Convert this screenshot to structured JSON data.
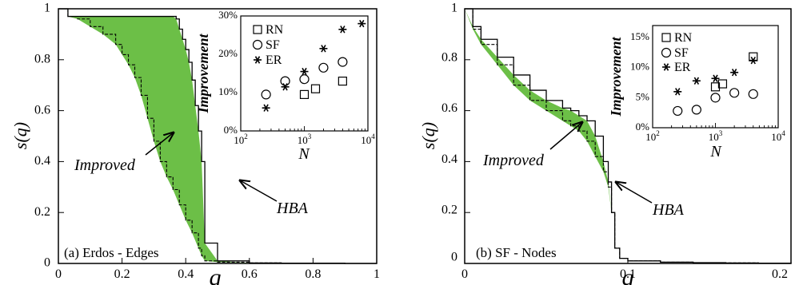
{
  "colors": {
    "fill": "#6cbf47",
    "line": "#000000"
  },
  "chart_data": [
    {
      "type": "area",
      "panel_label": "(a) Erdos - Edges",
      "xlabel": "q",
      "ylabel": "s(q)",
      "xlim": [
        0,
        1
      ],
      "ylim": [
        0,
        1
      ],
      "xticks": [
        "0",
        "0.2",
        "0.4",
        "0.6",
        "0.8",
        "1"
      ],
      "yticks": [
        "0",
        "0.2",
        "0.4",
        "0.6",
        "0.8",
        "1"
      ],
      "annotations": [
        {
          "text": "Improved"
        },
        {
          "text": "HBA"
        }
      ],
      "series": [
        {
          "name": "Improved",
          "x": [
            0,
            0.03,
            0.06,
            0.1,
            0.14,
            0.18,
            0.2,
            0.22,
            0.24,
            0.26,
            0.28,
            0.3,
            0.32,
            0.34,
            0.36,
            0.38,
            0.4,
            0.42,
            0.44,
            0.45,
            0.46,
            0.5,
            0.6,
            0.7,
            0.8,
            0.9,
            1.0
          ],
          "y": [
            1.0,
            0.97,
            0.96,
            0.93,
            0.9,
            0.86,
            0.82,
            0.78,
            0.73,
            0.66,
            0.57,
            0.48,
            0.4,
            0.34,
            0.29,
            0.23,
            0.17,
            0.12,
            0.06,
            0.03,
            0.01,
            0.005,
            0.002,
            0.001,
            0.001,
            0.0,
            0.0
          ]
        },
        {
          "name": "HBA",
          "x": [
            0,
            0.03,
            0.1,
            0.2,
            0.3,
            0.36,
            0.37,
            0.38,
            0.39,
            0.4,
            0.41,
            0.42,
            0.43,
            0.44,
            0.45,
            0.46,
            0.5,
            0.6,
            0.7,
            0.8,
            0.9,
            1.0
          ],
          "y": [
            1.0,
            0.97,
            0.97,
            0.97,
            0.97,
            0.97,
            0.96,
            0.92,
            0.88,
            0.84,
            0.79,
            0.72,
            0.62,
            0.52,
            0.4,
            0.08,
            0.01,
            0.002,
            0.001,
            0.001,
            0.0,
            0.0
          ]
        }
      ],
      "inset": {
        "type": "scatter",
        "xlabel": "N",
        "ylabel": "Improvement",
        "xscale": "log",
        "xlim": [
          100,
          10000
        ],
        "ylim": [
          0,
          30
        ],
        "yticks": [
          "0%",
          "10%",
          "20%",
          "30%"
        ],
        "xticks": [
          {
            "base": "10",
            "exp": "2"
          },
          {
            "base": "10",
            "exp": "3"
          },
          {
            "base": "10",
            "exp": "4"
          }
        ],
        "legend": [
          {
            "marker": "square",
            "label": "RN"
          },
          {
            "marker": "circle",
            "label": "SF"
          },
          {
            "marker": "star",
            "label": "ER"
          }
        ],
        "series": [
          {
            "name": "RN",
            "marker": "square",
            "x": [
              1000,
              1500,
              4000
            ],
            "y": [
              9.5,
              11,
              13
            ]
          },
          {
            "name": "SF",
            "marker": "circle",
            "x": [
              250,
              500,
              1000,
              2000,
              4000
            ],
            "y": [
              9.5,
              13,
              13.5,
              16.5,
              18
            ]
          },
          {
            "name": "ER",
            "marker": "star",
            "x": [
              250,
              500,
              1000,
              2000,
              4000,
              8000
            ],
            "y": [
              6,
              11.5,
              15.5,
              21.5,
              26.5,
              28
            ]
          }
        ]
      }
    },
    {
      "type": "area",
      "panel_label": "(b) SF - Nodes",
      "xlabel": "q",
      "ylabel": "s(q)",
      "xlim": [
        0,
        0.2
      ],
      "ylim": [
        0,
        1
      ],
      "xticks": [
        "0",
        "0.1",
        "0.2"
      ],
      "yticks": [
        "0",
        "0.2",
        "0.4",
        "0.6",
        "0.8",
        "1"
      ],
      "annotations": [
        {
          "text": "Improved"
        },
        {
          "text": "HBA"
        }
      ],
      "series": [
        {
          "name": "Improved",
          "x": [
            0,
            0.005,
            0.01,
            0.02,
            0.03,
            0.04,
            0.05,
            0.06,
            0.065,
            0.07,
            0.075,
            0.08,
            0.085,
            0.088,
            0.09,
            0.092,
            0.095,
            0.1,
            0.12,
            0.14,
            0.16,
            0.18,
            0.2
          ],
          "y": [
            1.0,
            0.92,
            0.86,
            0.78,
            0.7,
            0.64,
            0.6,
            0.56,
            0.54,
            0.52,
            0.48,
            0.42,
            0.36,
            0.3,
            0.2,
            0.06,
            0.02,
            0.01,
            0.005,
            0.003,
            0.002,
            0.001,
            0.0
          ]
        },
        {
          "name": "HBA",
          "x": [
            0,
            0.005,
            0.01,
            0.02,
            0.03,
            0.04,
            0.05,
            0.06,
            0.065,
            0.07,
            0.075,
            0.08,
            0.085,
            0.088,
            0.09,
            0.092,
            0.095,
            0.1,
            0.12,
            0.14,
            0.16,
            0.18,
            0.2
          ],
          "y": [
            1.0,
            0.93,
            0.88,
            0.81,
            0.74,
            0.68,
            0.64,
            0.61,
            0.6,
            0.58,
            0.56,
            0.5,
            0.4,
            0.32,
            0.2,
            0.06,
            0.02,
            0.01,
            0.005,
            0.003,
            0.002,
            0.001,
            0.0
          ]
        }
      ],
      "inset": {
        "type": "scatter",
        "xlabel": "N",
        "ylabel": "Improvement",
        "xscale": "log",
        "xlim": [
          100,
          10000
        ],
        "ylim": [
          0,
          17
        ],
        "yticks": [
          "0%",
          "5%",
          "10%",
          "15%"
        ],
        "xticks": [
          {
            "base": "10",
            "exp": "2"
          },
          {
            "base": "10",
            "exp": "3"
          },
          {
            "base": "10",
            "exp": "4"
          }
        ],
        "legend": [
          {
            "marker": "square",
            "label": "RN"
          },
          {
            "marker": "circle",
            "label": "SF"
          },
          {
            "marker": "star",
            "label": "ER"
          }
        ],
        "series": [
          {
            "name": "RN",
            "marker": "square",
            "x": [
              1000,
              1300,
              4000
            ],
            "y": [
              6.8,
              7.3,
              11.8
            ]
          },
          {
            "name": "SF",
            "marker": "circle",
            "x": [
              250,
              500,
              1000,
              2000,
              4000
            ],
            "y": [
              2.8,
              3.0,
              5.0,
              5.8,
              5.6
            ]
          },
          {
            "name": "ER",
            "marker": "star",
            "x": [
              250,
              500,
              1000,
              2000,
              4000
            ],
            "y": [
              6.0,
              7.8,
              8.2,
              9.2,
              11.2
            ]
          }
        ]
      }
    }
  ]
}
